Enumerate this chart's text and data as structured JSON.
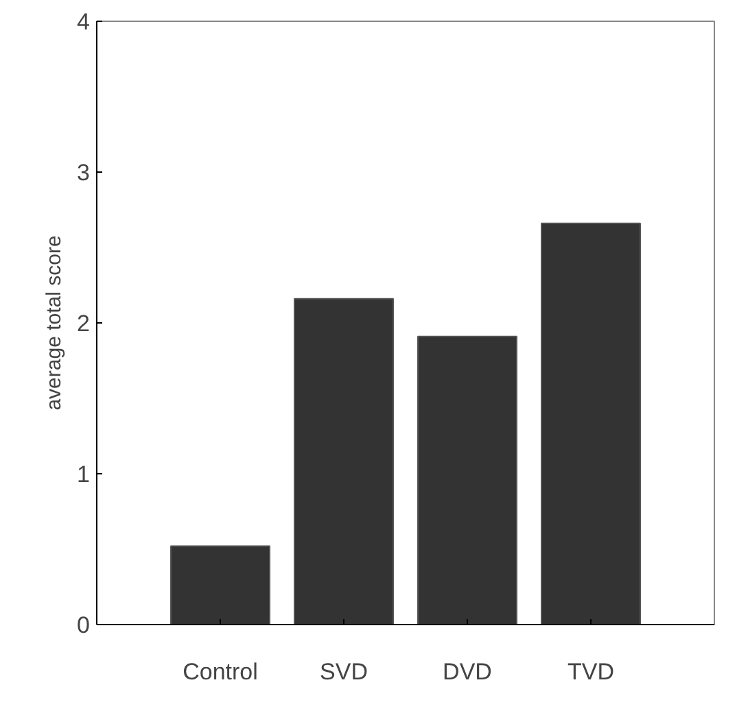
{
  "chart_data": {
    "type": "bar",
    "ylabel": "average total score",
    "categories": [
      "Control",
      "SVD",
      "DVD",
      "TVD"
    ],
    "values": [
      0.52,
      2.16,
      1.91,
      2.66
    ],
    "color": "#333333",
    "ylim": [
      0,
      4
    ],
    "yticks": [
      0,
      1,
      2,
      3,
      4
    ],
    "grid": false
  }
}
